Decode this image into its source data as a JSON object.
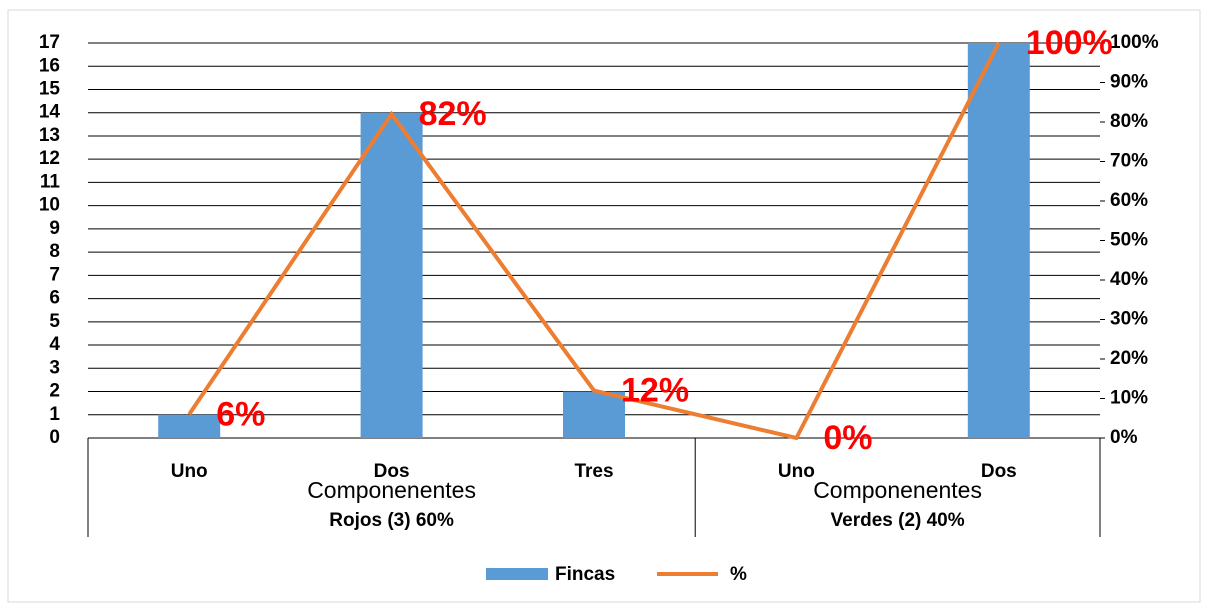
{
  "chart_data": {
    "type": "bar",
    "groups": [
      {
        "title": "Componenentes",
        "name": "Rojos (3) 60%",
        "categories": [
          "Uno",
          "Dos",
          "Tres"
        ]
      },
      {
        "title": "Componenentes",
        "name": "Verdes (2) 40%",
        "categories": [
          "Uno",
          "Dos"
        ]
      }
    ],
    "series": [
      {
        "name": "Fincas",
        "type": "bar",
        "color": "#5b9bd5",
        "values": [
          1,
          14,
          2,
          0,
          17
        ]
      },
      {
        "name": "%",
        "type": "line",
        "axis": "y2",
        "color": "#ed7d31",
        "values": [
          6,
          82,
          12,
          0,
          100
        ],
        "value_labels": [
          "6%",
          "82%",
          "12%",
          "0%",
          "100%"
        ],
        "label_color": "#ff0000"
      }
    ],
    "ylim": [
      0,
      17
    ],
    "yticks": [
      0,
      1,
      2,
      3,
      4,
      5,
      6,
      7,
      8,
      9,
      10,
      11,
      12,
      13,
      14,
      15,
      16,
      17
    ],
    "y2lim": [
      0,
      100
    ],
    "y2ticks": [
      {
        "value": 0,
        "label": "0%"
      },
      {
        "value": 10,
        "label": "10%"
      },
      {
        "value": 20,
        "label": "20%"
      },
      {
        "value": 30,
        "label": "30%"
      },
      {
        "value": 40,
        "label": "40%"
      },
      {
        "value": 50,
        "label": "50%"
      },
      {
        "value": 60,
        "label": "60%"
      },
      {
        "value": 70,
        "label": "70%"
      },
      {
        "value": 80,
        "label": "80%"
      },
      {
        "value": 90,
        "label": "90%"
      },
      {
        "value": 100,
        "label": "100%"
      }
    ],
    "grid": true
  }
}
